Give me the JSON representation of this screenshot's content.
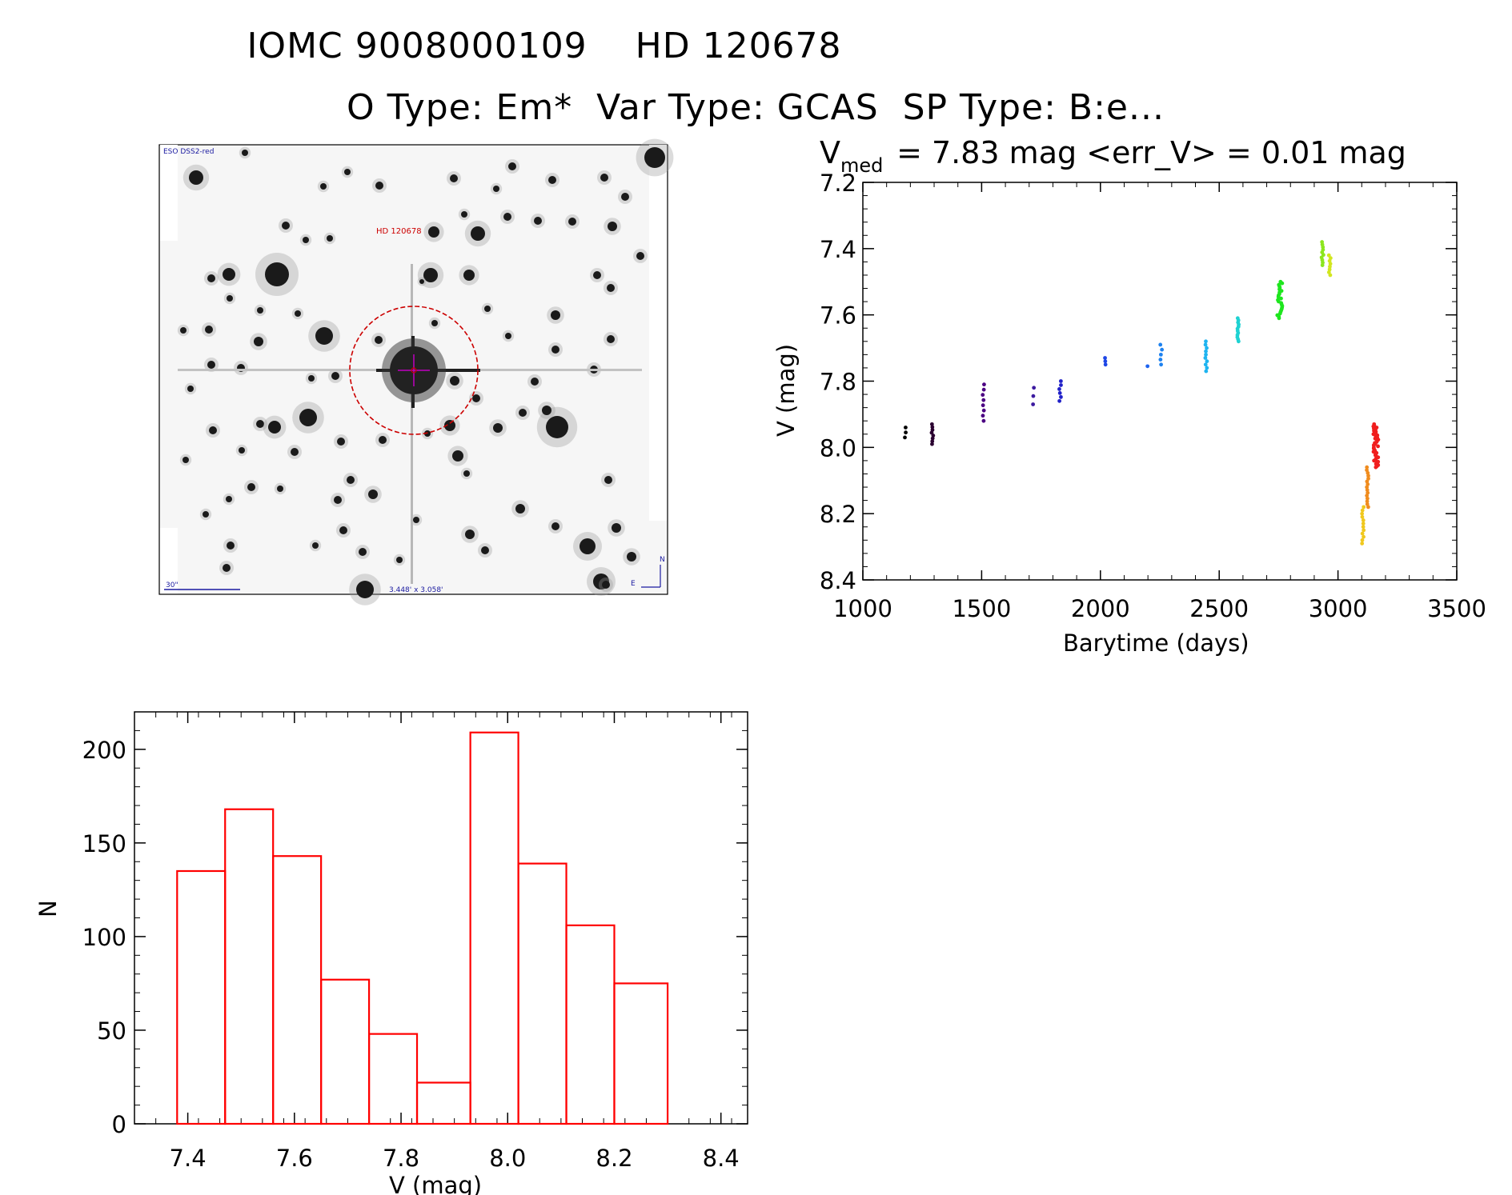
{
  "header": {
    "title_line1": "IOMC 9008000109    HD 120678",
    "title_line2": "O Type: Em*  Var Type: GCAS  SP Type: B:e..."
  },
  "finder": {
    "survey_label": "ESO DSS2-red",
    "target_label": "HD 120678",
    "scale_label": "30\"",
    "fov_label": "3.448' x 3.058'",
    "north_label": "N",
    "east_label": "E",
    "colors": {
      "target": "#cc0000",
      "labels": "#1a1aa0",
      "crosshair": "#c000c0"
    }
  },
  "chart_data": [
    {
      "type": "scatter",
      "title_main": "V",
      "title_sub": "med",
      "title_rest": " = 7.83 mag <err_V> = 0.01 mag",
      "xlabel": "Barytime (days)",
      "ylabel": "V (mag)",
      "xlim": [
        1000,
        3500
      ],
      "ylim": [
        8.4,
        7.2
      ],
      "y_inverted": true,
      "xticks": [
        "1000",
        "1500",
        "2000",
        "2500",
        "3000",
        "3500"
      ],
      "yticks": [
        "7.2",
        "7.4",
        "7.6",
        "7.8",
        "8.0",
        "8.2",
        "8.4"
      ],
      "groups": [
        {
          "x": 1180,
          "y_range": [
            7.94,
            7.97
          ],
          "n": 3,
          "color": "#000000"
        },
        {
          "x": 1293,
          "y_range": [
            7.93,
            7.99
          ],
          "n": 8,
          "color": "#2a0030"
        },
        {
          "x": 1508,
          "y_range": [
            7.81,
            7.92
          ],
          "n": 8,
          "color": "#4b0082"
        },
        {
          "x": 1720,
          "y_range": [
            7.82,
            7.87
          ],
          "n": 3,
          "color": "#3c1aa0"
        },
        {
          "x": 1830,
          "y_range": [
            7.8,
            7.86
          ],
          "n": 6,
          "color": "#2020c8"
        },
        {
          "x": 2020,
          "y_range": [
            7.73,
            7.75
          ],
          "n": 3,
          "color": "#1e46e6"
        },
        {
          "x": 2200,
          "y_range": [
            7.75,
            7.76
          ],
          "n": 1,
          "color": "#1e64f0"
        },
        {
          "x": 2255,
          "y_range": [
            7.69,
            7.75
          ],
          "n": 5,
          "color": "#1e82f0"
        },
        {
          "x": 2445,
          "y_range": [
            7.68,
            7.77
          ],
          "n": 10,
          "color": "#1eb4f0"
        },
        {
          "x": 2580,
          "y_range": [
            7.61,
            7.68
          ],
          "n": 12,
          "color": "#1ed2d2"
        },
        {
          "x": 2755,
          "y_range": [
            7.5,
            7.61
          ],
          "n": 25,
          "color": "#1ee61e"
        },
        {
          "x": 2935,
          "y_range": [
            7.38,
            7.45
          ],
          "n": 10,
          "color": "#8ce61e"
        },
        {
          "x": 2965,
          "y_range": [
            7.42,
            7.48
          ],
          "n": 8,
          "color": "#d2e61e"
        },
        {
          "x": 3105,
          "y_range": [
            8.18,
            8.29
          ],
          "n": 12,
          "color": "#f0c81e"
        },
        {
          "x": 3125,
          "y_range": [
            8.06,
            8.18
          ],
          "n": 15,
          "color": "#f08c1e"
        },
        {
          "x": 3160,
          "y_range": [
            7.93,
            8.06
          ],
          "n": 40,
          "color": "#f01e1e"
        }
      ]
    },
    {
      "type": "bar",
      "style": "histogram",
      "xlabel": "V (mag)",
      "ylabel": "N",
      "xlim": [
        7.3,
        8.45
      ],
      "ylim": [
        0,
        220
      ],
      "xticks": [
        "7.4",
        "7.6",
        "7.8",
        "8.0",
        "8.2",
        "8.4"
      ],
      "yticks": [
        "0",
        "50",
        "100",
        "150",
        "200"
      ],
      "bin_edges": [
        7.38,
        7.47,
        7.56,
        7.65,
        7.74,
        7.83,
        7.93,
        8.02,
        8.11,
        8.2,
        8.3
      ],
      "values": [
        135,
        168,
        143,
        77,
        48,
        22,
        209,
        139,
        106,
        75
      ],
      "bar_color": "#ff0000"
    }
  ]
}
